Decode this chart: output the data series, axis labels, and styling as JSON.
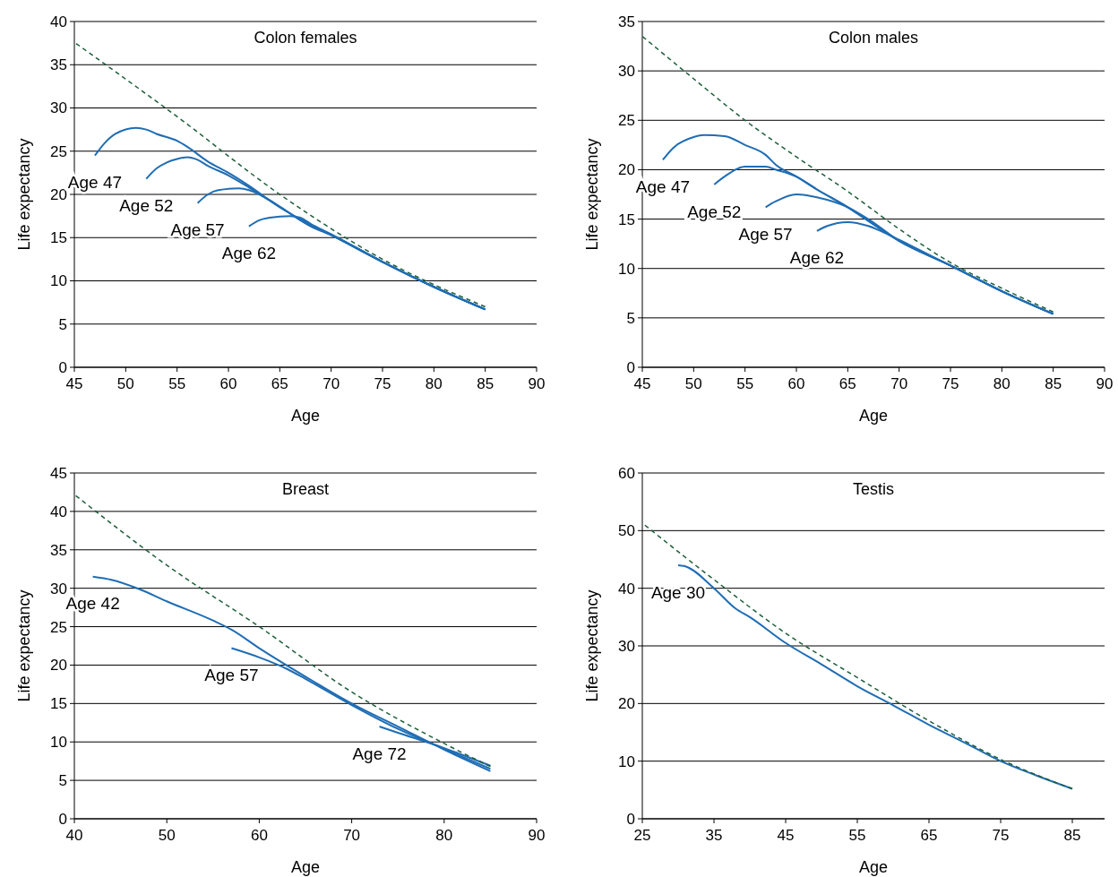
{
  "chart_data": [
    {
      "type": "line",
      "title": "Colon females",
      "xlabel": "Age",
      "ylabel": "Life expectancy",
      "xlim": [
        45,
        90
      ],
      "xticks": [
        45,
        50,
        55,
        60,
        65,
        70,
        75,
        80,
        85,
        90
      ],
      "ylim": [
        0,
        40
      ],
      "yticks": [
        0,
        5,
        10,
        15,
        20,
        25,
        30,
        35,
        40
      ],
      "grid": "y",
      "series": [
        {
          "color": "#1e5e3a",
          "line_style": "dashed",
          "x": [
            45,
            55,
            65,
            75,
            85
          ],
          "values": [
            37.6,
            29,
            20,
            12.5,
            7
          ]
        },
        {
          "name": "Age 47",
          "color": "#1f6db4",
          "x": [
            47,
            48,
            49,
            51,
            52,
            53,
            55,
            56,
            58,
            60,
            62,
            65,
            68,
            70,
            75,
            80,
            85
          ],
          "values": [
            24.5,
            26,
            27,
            27.7,
            27.5,
            27,
            26.2,
            25.5,
            23.8,
            22.5,
            21,
            18.5,
            16.5,
            15.3,
            12.2,
            9.3,
            6.7
          ]
        },
        {
          "name": "Age 52",
          "color": "#1f6db4",
          "x": [
            52,
            53,
            54,
            55,
            56,
            57,
            58,
            60,
            62,
            64,
            66,
            68,
            70,
            75,
            80,
            85
          ],
          "values": [
            21.8,
            23,
            23.7,
            24.1,
            24.3,
            24,
            23.3,
            22.2,
            20.8,
            19.3,
            17.8,
            16.3,
            15.3,
            12.2,
            9.3,
            6.7
          ]
        },
        {
          "name": "Age 57",
          "color": "#1f6db4",
          "x": [
            57,
            58,
            59,
            61,
            62,
            63,
            65,
            67,
            70,
            75,
            80,
            85
          ],
          "values": [
            19,
            20,
            20.5,
            20.7,
            20.5,
            20,
            18.6,
            17,
            15.3,
            12.2,
            9.3,
            6.7
          ]
        },
        {
          "name": "Age 62",
          "color": "#1f6db4",
          "x": [
            62,
            63,
            64,
            66,
            67,
            68,
            70,
            75,
            80,
            85
          ],
          "values": [
            16.3,
            17,
            17.3,
            17.5,
            17.3,
            16.6,
            15.4,
            12.2,
            9.3,
            6.7
          ]
        }
      ]
    },
    {
      "type": "line",
      "title": "Colon males",
      "xlabel": "Age",
      "ylabel": "Life expectancy",
      "xlim": [
        45,
        90
      ],
      "xticks": [
        45,
        50,
        55,
        60,
        65,
        70,
        75,
        80,
        85,
        90
      ],
      "ylim": [
        0,
        35
      ],
      "yticks": [
        0,
        5,
        10,
        15,
        20,
        25,
        30,
        35
      ],
      "grid": "y",
      "series": [
        {
          "color": "#1e5e3a",
          "line_style": "dashed",
          "x": [
            45,
            50,
            55,
            60,
            65,
            70,
            75,
            80,
            85
          ],
          "values": [
            33.5,
            29.2,
            25,
            21.3,
            17.8,
            14,
            10.6,
            8,
            5.6
          ]
        },
        {
          "name": "Age 47",
          "color": "#1f6db4",
          "x": [
            47,
            48,
            50,
            51,
            53,
            55,
            57,
            58,
            60,
            62,
            65,
            67,
            70,
            75,
            80,
            85
          ],
          "values": [
            21,
            22.2,
            23.3,
            23.5,
            23.4,
            22.5,
            21.5,
            20.5,
            19.3,
            18,
            16.2,
            14.8,
            12.8,
            10.3,
            7.7,
            5.4
          ]
        },
        {
          "name": "Age 52",
          "color": "#1f6db4",
          "x": [
            52,
            53,
            55,
            57,
            58,
            60,
            62,
            65,
            70,
            75,
            80,
            85
          ],
          "values": [
            18.5,
            19.3,
            20.3,
            20.3,
            20,
            19.3,
            18,
            16.2,
            12.8,
            10.3,
            7.7,
            5.4
          ]
        },
        {
          "name": "Age 57",
          "color": "#1f6db4",
          "x": [
            57,
            58,
            60,
            61,
            62,
            65,
            67,
            70,
            75,
            80,
            85
          ],
          "values": [
            16.2,
            16.8,
            17.5,
            17.4,
            17.2,
            16.2,
            15,
            12.8,
            10.3,
            7.7,
            5.4
          ]
        },
        {
          "name": "Age 62",
          "color": "#1f6db4",
          "x": [
            62,
            63,
            65,
            67,
            69,
            70,
            75,
            80,
            85
          ],
          "values": [
            13.8,
            14.3,
            14.7,
            14.3,
            13.4,
            12.9,
            10.3,
            7.7,
            5.4
          ]
        }
      ]
    },
    {
      "type": "line",
      "title": "Breast",
      "xlabel": "Age",
      "ylabel": "Life expectancy",
      "xlim": [
        40,
        90
      ],
      "xticks": [
        40,
        50,
        60,
        70,
        80,
        90
      ],
      "ylim": [
        0,
        45
      ],
      "yticks": [
        0,
        5,
        10,
        15,
        20,
        25,
        30,
        35,
        40,
        45
      ],
      "grid": "y",
      "series": [
        {
          "color": "#1e5e3a",
          "line_style": "dashed",
          "x": [
            40,
            50,
            60,
            70,
            80,
            85
          ],
          "values": [
            42.2,
            33,
            25,
            16.5,
            9.8,
            6.8
          ]
        },
        {
          "name": "Age 42",
          "color": "#1f6db4",
          "x": [
            42,
            44,
            47,
            50,
            55,
            57,
            60,
            65,
            70,
            75,
            80,
            85
          ],
          "values": [
            31.5,
            31.1,
            29.9,
            28.3,
            25.8,
            24.6,
            22.2,
            18.5,
            15,
            12,
            9,
            6.2
          ]
        },
        {
          "name": "Age 57",
          "color": "#1f6db4",
          "x": [
            57,
            60,
            63,
            65,
            70,
            75,
            80,
            85
          ],
          "values": [
            22.2,
            21,
            19.5,
            18.2,
            14.8,
            11.7,
            9.1,
            6.5
          ]
        },
        {
          "name": "Age 72",
          "color": "#1f6db4",
          "x": [
            73,
            75,
            80,
            85
          ],
          "values": [
            12,
            11.2,
            9.2,
            6.9
          ]
        }
      ]
    },
    {
      "type": "line",
      "title": "Testis",
      "xlabel": "Age",
      "ylabel": "Life expectancy",
      "xlim": [
        25,
        89.5
      ],
      "xticks": [
        25,
        35,
        45,
        55,
        65,
        75,
        85
      ],
      "ylim": [
        0,
        60
      ],
      "yticks": [
        0,
        10,
        20,
        30,
        40,
        50,
        60
      ],
      "grid": "y",
      "series": [
        {
          "color": "#1e5e3a",
          "line_style": "dashed",
          "x": [
            25,
            35,
            45,
            55,
            65,
            75,
            85
          ],
          "values": [
            51.3,
            41.5,
            32.2,
            24.5,
            17,
            10.3,
            5.2
          ]
        },
        {
          "name": "Age 30",
          "color": "#1f6db4",
          "x": [
            30,
            31,
            35,
            38,
            40,
            45,
            50,
            55,
            60,
            65,
            70,
            75,
            80,
            85
          ],
          "values": [
            44,
            43.8,
            40,
            36.5,
            35,
            30.5,
            26.8,
            23,
            19.7,
            16.3,
            13.2,
            10,
            7.5,
            5.2
          ]
        }
      ]
    }
  ]
}
